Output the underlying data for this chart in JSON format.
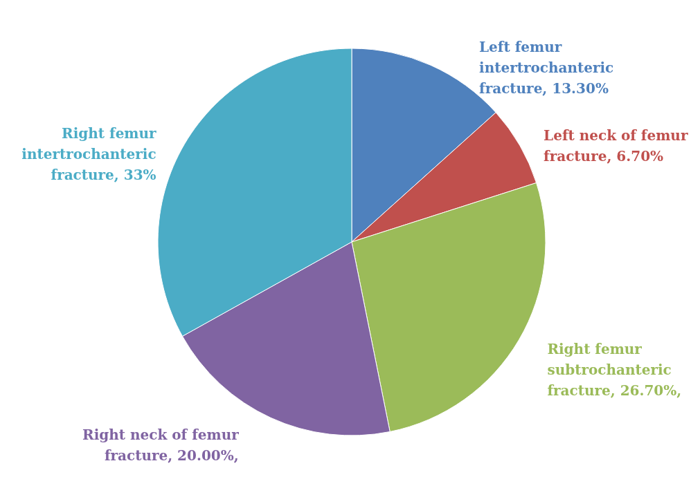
{
  "chart_data": {
    "type": "pie",
    "categories": [
      "Left femur intertrochanteric fracture",
      "Left neck of femur fracture",
      "Right femur subtrochanteric fracture",
      "Right neck of femur fracture",
      "Right femur intertrochanteric fracture"
    ],
    "values": [
      13.3,
      6.7,
      26.7,
      20.0,
      33
    ],
    "value_labels": [
      "13.30%",
      "6.70%",
      "26.70%,",
      "20.00%,",
      "33%"
    ],
    "colors": [
      "#4f81bd",
      "#c0504d",
      "#9bbb59",
      "#8064a2",
      "#4bacc6"
    ]
  }
}
